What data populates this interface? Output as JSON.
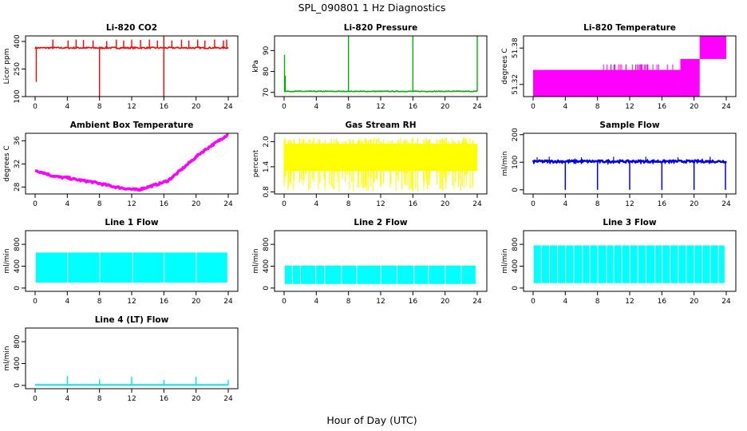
{
  "figure": {
    "title": "SPL_090801  1 Hz Diagnostics",
    "xlabel": "Hour of Day (UTC)"
  },
  "chart_data": [
    {
      "type": "line",
      "title": "Li-820 CO2",
      "ylabel": "Licor ppm",
      "color": "#ff0000",
      "xlim": [
        0,
        24
      ],
      "ylim": [
        100,
        430
      ],
      "yticks": [
        "100",
        "250",
        "400"
      ],
      "ytick_values": [
        100,
        250,
        400
      ],
      "xticks": [
        "0",
        "4",
        "8",
        "12",
        "16",
        "20",
        "24"
      ],
      "baseline": 365,
      "spikes_up": [
        [
          2.2,
          410
        ],
        [
          4.1,
          405
        ],
        [
          5.1,
          410
        ],
        [
          6.0,
          408
        ],
        [
          7.2,
          405
        ],
        [
          8.9,
          402
        ],
        [
          10.1,
          410
        ],
        [
          11.0,
          405
        ],
        [
          12.0,
          410
        ],
        [
          13.1,
          408
        ],
        [
          14.2,
          410
        ],
        [
          15.2,
          405
        ],
        [
          16.0,
          430
        ],
        [
          17.0,
          405
        ],
        [
          18.2,
          410
        ],
        [
          19.1,
          405
        ],
        [
          20.2,
          410
        ],
        [
          21.1,
          405
        ],
        [
          22.3,
          410
        ],
        [
          23.4,
          405
        ],
        [
          23.8,
          410
        ]
      ],
      "spikes_down": [
        [
          0.15,
          180
        ],
        [
          8.0,
          100
        ],
        [
          16.0,
          100
        ]
      ]
    },
    {
      "type": "line",
      "title": "Li-820 Pressure",
      "ylabel": "kPa",
      "color": "#00b000",
      "xlim": [
        0,
        24
      ],
      "ylim": [
        68,
        97
      ],
      "yticks": [
        "70",
        "80",
        "90"
      ],
      "ytick_values": [
        70,
        80,
        90
      ],
      "xticks": [
        "0",
        "4",
        "8",
        "12",
        "16",
        "20",
        "24"
      ],
      "baseline": 70.5,
      "spikes_up": [
        [
          0.05,
          88
        ],
        [
          0.15,
          78
        ],
        [
          8.0,
          97
        ],
        [
          16.0,
          97
        ],
        [
          24.0,
          97
        ]
      ],
      "spikes_down": []
    },
    {
      "type": "area",
      "title": "Li-820 Temperature",
      "ylabel": "degrees C",
      "color": "#ff00ff",
      "xlim": [
        0,
        24
      ],
      "ylim": [
        51.3,
        51.4
      ],
      "yticks": [
        "51.32",
        "51.38"
      ],
      "ytick_values": [
        51.32,
        51.38
      ],
      "xticks": [
        "0",
        "4",
        "8",
        "12",
        "16",
        "20",
        "24"
      ],
      "steps": [
        [
          0,
          18.3,
          51.3,
          51.344
        ],
        [
          18.3,
          20.7,
          51.3,
          51.362
        ],
        [
          20.7,
          24,
          51.362,
          51.4
        ]
      ]
    },
    {
      "type": "line",
      "title": "Ambient Box Temperature",
      "ylabel": "degrees C",
      "color": "#ff00ff",
      "xlim": [
        0,
        24
      ],
      "ylim": [
        26.8,
        37.3
      ],
      "yticks": [
        "28",
        "32",
        "36"
      ],
      "ytick_values": [
        28,
        32,
        36
      ],
      "xticks": [
        "0",
        "4",
        "8",
        "12",
        "16",
        "20",
        "24"
      ],
      "x": [
        0,
        1,
        2,
        3,
        4,
        5,
        6,
        7,
        8,
        9,
        10,
        11,
        12,
        12.8,
        13.5,
        14.5,
        15.5,
        16.5,
        17.5,
        18.5,
        19.5,
        20.5,
        21.5,
        22.5,
        23.3,
        24
      ],
      "y": [
        30.9,
        30.5,
        30.0,
        29.7,
        29.6,
        29.3,
        29.1,
        28.9,
        28.6,
        28.3,
        28.0,
        27.8,
        27.6,
        27.5,
        27.8,
        28.2,
        28.6,
        29.1,
        30.2,
        31.4,
        32.6,
        33.8,
        34.8,
        35.7,
        36.5,
        37.1
      ],
      "band": 0.35
    },
    {
      "type": "area",
      "title": "Gas Stream RH",
      "ylabel": "percent",
      "color": "#ffff00",
      "xlim": [
        0,
        24
      ],
      "ylim": [
        0.75,
        2.2
      ],
      "yticks": [
        "0.8",
        "1.4",
        "2.0"
      ],
      "ytick_values": [
        0.8,
        1.4,
        2.0
      ],
      "xticks": [
        "0",
        "4",
        "8",
        "12",
        "16",
        "20",
        "24"
      ],
      "band_low": 1.3,
      "band_high": 1.95,
      "extreme_low": 0.8,
      "extreme_high": 2.1
    },
    {
      "type": "line",
      "title": "Sample Flow",
      "ylabel": "ml/min",
      "color": "#0000ee",
      "xlim": [
        0,
        24
      ],
      "ylim": [
        -15,
        205
      ],
      "yticks": [
        "0",
        "100",
        "200"
      ],
      "ytick_values": [
        0,
        100,
        200
      ],
      "xticks": [
        "0",
        "4",
        "8",
        "12",
        "16",
        "20",
        "24"
      ],
      "baseline": 103,
      "dips": [
        [
          4.0,
          0
        ],
        [
          8.0,
          0
        ],
        [
          12.0,
          0
        ],
        [
          16.0,
          0
        ],
        [
          20.0,
          0
        ],
        [
          23.9,
          0
        ]
      ],
      "spikes_up": [
        [
          0.5,
          118
        ],
        [
          2.0,
          120
        ],
        [
          6.0,
          118
        ],
        [
          10.0,
          120
        ],
        [
          14.0,
          120
        ],
        [
          18.0,
          118
        ],
        [
          22.0,
          120
        ]
      ]
    },
    {
      "type": "area",
      "title": "Line 1 Flow",
      "ylabel": "ml/min",
      "color": "#00ffff",
      "xlim": [
        0,
        24
      ],
      "ylim": [
        -60,
        1050
      ],
      "yticks": [
        "0",
        "400",
        "800"
      ],
      "ytick_values": [
        0,
        400,
        800
      ],
      "xticks": [
        "0",
        "4",
        "8",
        "12",
        "16",
        "20",
        "24"
      ],
      "band_low": 100,
      "band_high": 650,
      "gaps": [
        4.0,
        8.0,
        12.1,
        16.0,
        20.0,
        23.9
      ]
    },
    {
      "type": "area",
      "title": "Line 2 Flow",
      "ylabel": "ml/min",
      "color": "#00ffff",
      "xlim": [
        0,
        24
      ],
      "ylim": [
        -60,
        1050
      ],
      "yticks": [
        "0",
        "400",
        "800"
      ],
      "ytick_values": [
        0,
        400,
        800
      ],
      "xticks": [
        "0",
        "4",
        "8",
        "12",
        "16",
        "20",
        "24"
      ],
      "band_low": 75,
      "band_high": 410,
      "gaps": [
        1.0,
        2.0,
        3.9,
        5.0,
        7.1,
        9.0,
        12.0,
        14.0,
        16.1,
        17.9,
        20.0,
        22.0,
        23.8
      ]
    },
    {
      "type": "area",
      "title": "Line 3 Flow",
      "ylabel": "ml/min",
      "color": "#00ffff",
      "xlim": [
        0,
        24
      ],
      "ylim": [
        -60,
        1050
      ],
      "yticks": [
        "0",
        "400",
        "800"
      ],
      "ytick_values": [
        0,
        400,
        800
      ],
      "xticks": [
        "0",
        "4",
        "8",
        "12",
        "16",
        "20",
        "24"
      ],
      "band_low": 90,
      "band_high": 780,
      "gaps": [
        1.0,
        2.0,
        3.0,
        4.0,
        5.0,
        6.1,
        7.0,
        8.0,
        9.1,
        10.0,
        11.0,
        12.0,
        13.0,
        14.0,
        15.1,
        16.0,
        17.0,
        18.0,
        19.0,
        20.0,
        21.0,
        22.0,
        23.0,
        23.8
      ]
    },
    {
      "type": "line",
      "title": "Line 4 (LT) Flow",
      "ylabel": "ml/min",
      "color": "#00e5e5",
      "xlim": [
        0,
        24
      ],
      "ylim": [
        -60,
        1050
      ],
      "yticks": [
        "0",
        "400",
        "800"
      ],
      "ytick_values": [
        0,
        400,
        800
      ],
      "xticks": [
        "0",
        "4",
        "8",
        "12",
        "16",
        "20",
        "24"
      ],
      "baseline": 10,
      "spikes_up": [
        [
          4.0,
          170
        ],
        [
          8.0,
          110
        ],
        [
          12.0,
          160
        ],
        [
          16.0,
          100
        ],
        [
          20.0,
          160
        ],
        [
          24.0,
          100
        ]
      ]
    }
  ]
}
